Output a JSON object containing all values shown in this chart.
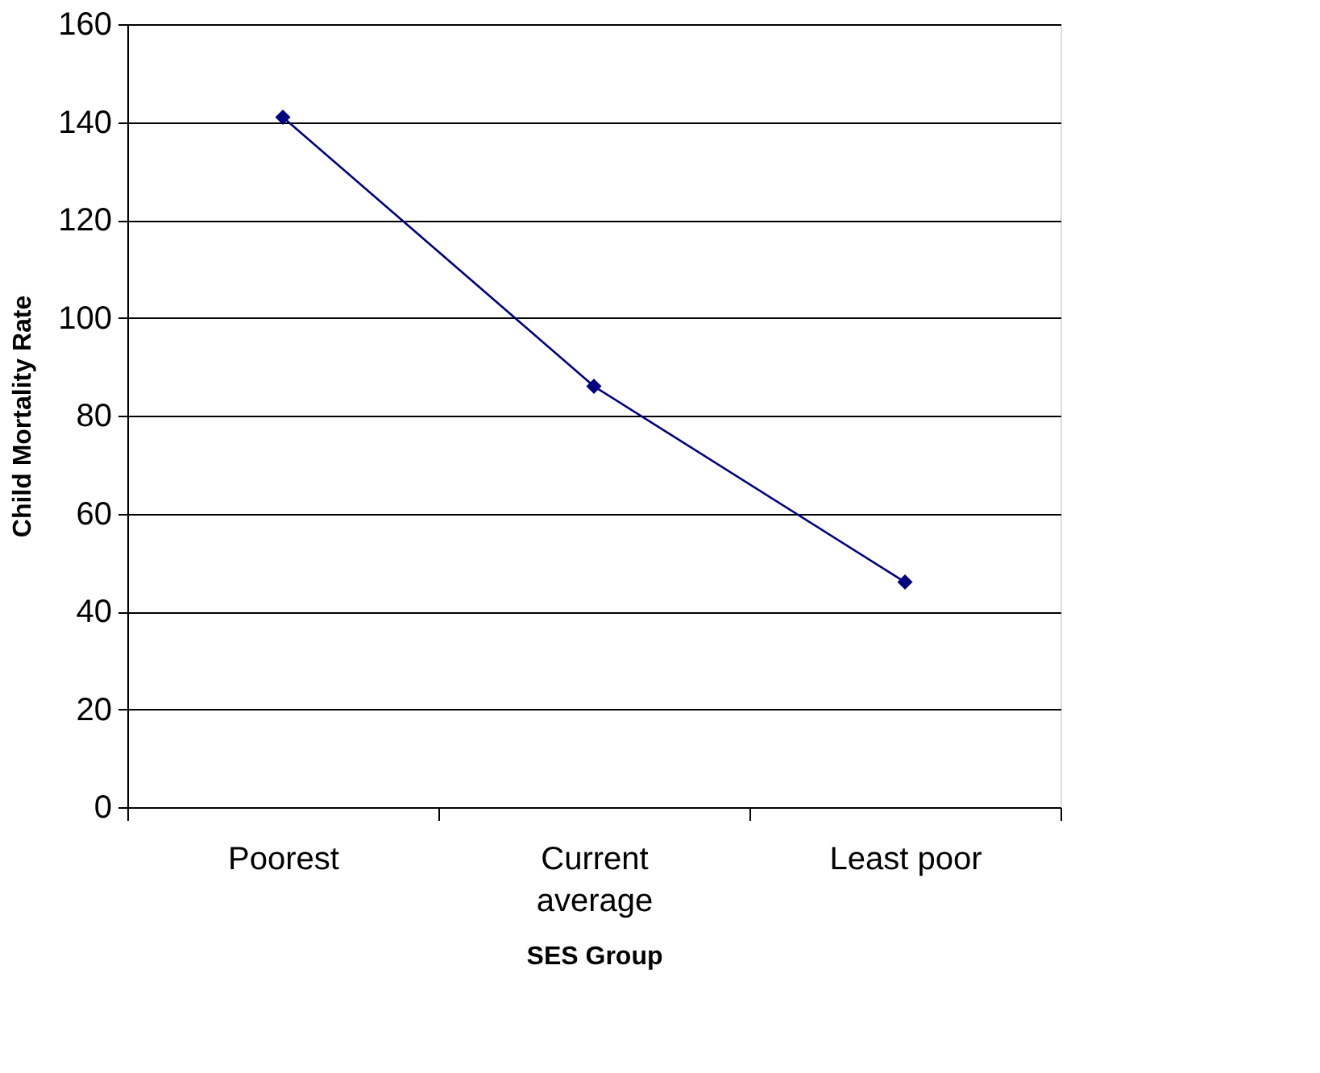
{
  "chart_data": {
    "type": "line",
    "xlabel": "SES Group",
    "ylabel": "Child Mortality Rate",
    "categories": [
      "Poorest",
      "Current average",
      "Least poor"
    ],
    "series": [
      {
        "color": "#000080",
        "values": [
          141,
          86,
          46
        ]
      }
    ],
    "ylim": [
      0,
      160
    ],
    "yticks": [
      0,
      20,
      40,
      60,
      80,
      100,
      120,
      140,
      160
    ],
    "grid": "y",
    "marker": "diamond",
    "line_style": "solid"
  }
}
